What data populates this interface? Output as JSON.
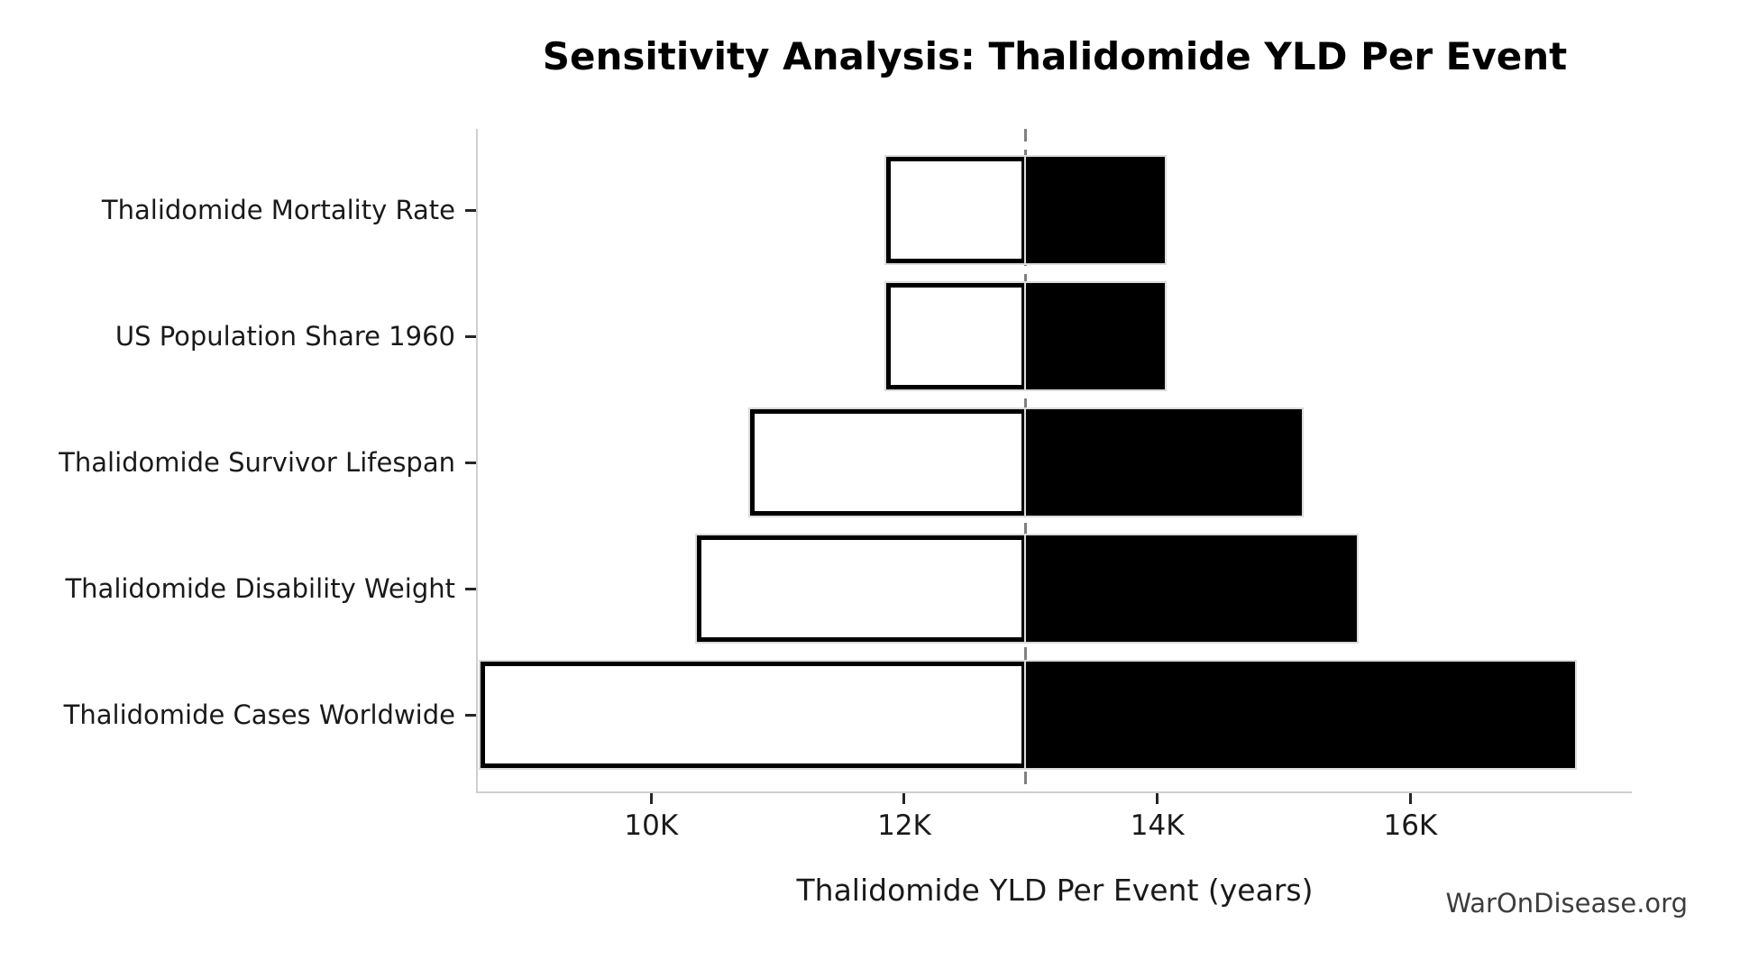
{
  "page": {
    "background": "#ffffff",
    "watermark_text": "WarOnDisease.org"
  },
  "chart_data": {
    "type": "bar",
    "variant": "tornado-sensitivity",
    "title": "Sensitivity Analysis: Thalidomide YLD Per Event",
    "xlabel": "Thalidomide YLD Per Event (years)",
    "ylabel": "",
    "baseline_value": 12960,
    "xlim": [
      8630,
      17750
    ],
    "grid": false,
    "legend": null,
    "x_ticks": [
      {
        "value": 10000,
        "label": "10K"
      },
      {
        "value": 12000,
        "label": "12K"
      },
      {
        "value": 14000,
        "label": "14K"
      },
      {
        "value": 16000,
        "label": "16K"
      }
    ],
    "categories": [
      "Thalidomide Mortality Rate",
      "US Population Share 1960",
      "Thalidomide Survivor Lifespan",
      "Thalidomide Disability Weight",
      "Thalidomide Cases Worldwide"
    ],
    "bars": [
      {
        "label": "Thalidomide Mortality Rate",
        "low": 11860,
        "high": 14060
      },
      {
        "label": "US Population Share 1960",
        "low": 11860,
        "high": 14060
      },
      {
        "label": "Thalidomide Survivor Lifespan",
        "low": 10780,
        "high": 15140
      },
      {
        "label": "Thalidomide Disability Weight",
        "low": 10360,
        "high": 15580
      },
      {
        "label": "Thalidomide Cases Worldwide",
        "low": 8650,
        "high": 17300
      }
    ],
    "colors": {
      "low_fill": "#ffffff",
      "high_fill": "#000000",
      "bar_edge": "#000000",
      "baseline_line": "#808080",
      "spine": "#cfcfcf",
      "tick": "#262626",
      "text": "#1a1a1a",
      "watermark": "#3d3d3d"
    }
  }
}
